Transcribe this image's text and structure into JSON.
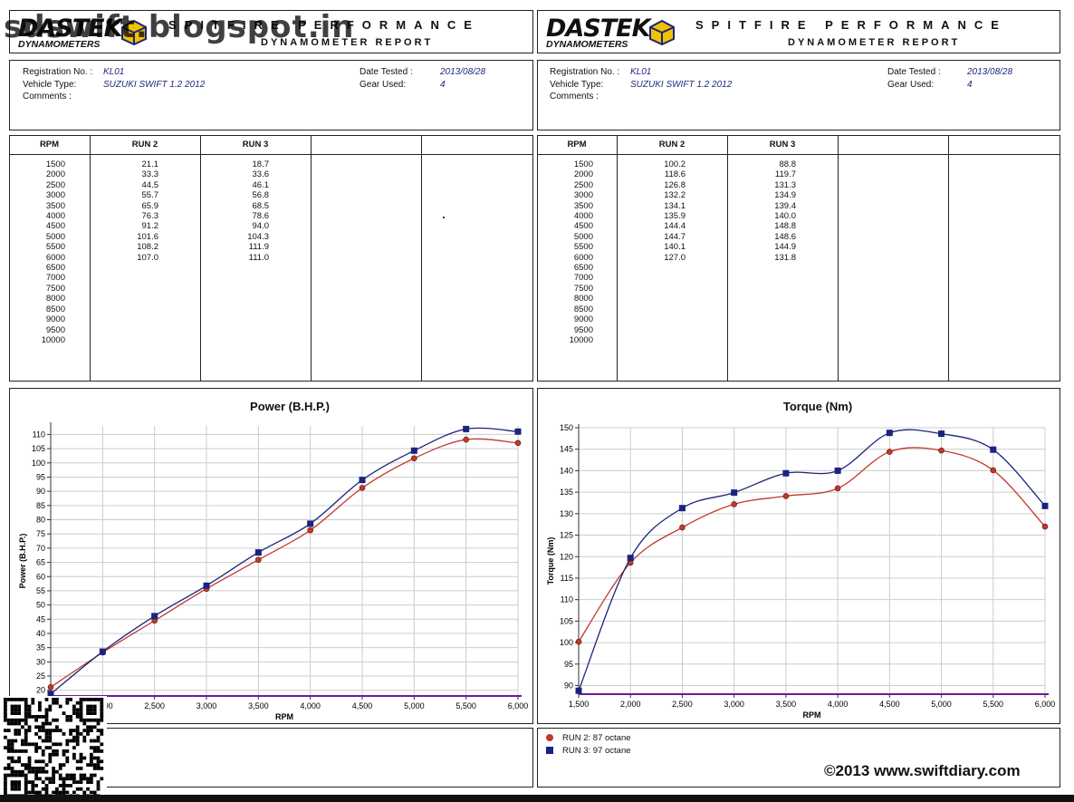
{
  "logo": {
    "brand": "DASTEK",
    "sub": "DYNAMOMETERS"
  },
  "header": {
    "title": "SPITFIRE PERFORMANCE",
    "subtitle": "DYNAMOMETER REPORT"
  },
  "watermark": "sdswift.blogspot.in",
  "info": {
    "registration_label": "Registration No. :",
    "registration": "KL01",
    "vehicle_label": "Vehicle Type:",
    "vehicle": "SUZUKI SWIFT 1.2 2012",
    "comments_label": "Comments :",
    "date_label": "Date Tested :",
    "date": "2013/08/28",
    "gear_label": "Gear Used:",
    "gear": "4"
  },
  "table_headers": {
    "rpm": "RPM",
    "run2": "RUN 2",
    "run3": "RUN 3"
  },
  "rpm_values": [
    "1500",
    "2000",
    "2500",
    "3000",
    "3500",
    "4000",
    "4500",
    "5000",
    "5500",
    "6000",
    "6500",
    "7000",
    "7500",
    "8000",
    "8500",
    "9000",
    "9500",
    "10000"
  ],
  "power_table": {
    "run2": [
      "21.1",
      "33.3",
      "44.5",
      "55.7",
      "65.9",
      "76.3",
      "91.2",
      "101.6",
      "108.2",
      "107.0"
    ],
    "run3": [
      "18.7",
      "33.6",
      "46.1",
      "56.8",
      "68.5",
      "78.6",
      "94.0",
      "104.3",
      "111.9",
      "111.0"
    ]
  },
  "torque_table": {
    "run2": [
      "100.2",
      "118.6",
      "126.8",
      "132.2",
      "134.1",
      "135.9",
      "144.4",
      "144.7",
      "140.1",
      "127.0"
    ],
    "run3": [
      "88.8",
      "119.7",
      "131.3",
      "134.9",
      "139.4",
      "140.0",
      "148.8",
      "148.6",
      "144.9",
      "131.8"
    ]
  },
  "legend": {
    "run2": "RUN 2: 87 octane",
    "run3": "RUN 3: 97 octane"
  },
  "copyright": "©2013 www.swiftdiary.com",
  "colors": {
    "run2": "#c0392b",
    "run3": "#1a237e",
    "grid": "#cccccc"
  },
  "chart_data": [
    {
      "type": "line",
      "title": "Power (B.H.P.)",
      "xlabel": "RPM",
      "ylabel": "Power (B.H.P.)",
      "x": [
        1500,
        2000,
        2500,
        3000,
        3500,
        4000,
        4500,
        5000,
        5500,
        6000
      ],
      "xlim": [
        1500,
        6000
      ],
      "ylim": [
        18,
        113
      ],
      "xticks": [
        2000,
        2500,
        3000,
        3500,
        4000,
        4500,
        5000,
        5500,
        6000
      ],
      "xtick_labels": [
        "2,000",
        "2,500",
        "3,000",
        "3,500",
        "4,000",
        "4,500",
        "5,000",
        "5,500",
        "6,000"
      ],
      "yticks": [
        20,
        25,
        30,
        35,
        40,
        45,
        50,
        55,
        60,
        65,
        70,
        75,
        80,
        85,
        90,
        95,
        100,
        105,
        110
      ],
      "grid": true,
      "series": [
        {
          "name": "RUN 2",
          "values": [
            21.1,
            33.3,
            44.5,
            55.7,
            65.9,
            76.3,
            91.2,
            101.6,
            108.2,
            107.0
          ]
        },
        {
          "name": "RUN 3",
          "values": [
            18.7,
            33.6,
            46.1,
            56.8,
            68.5,
            78.6,
            94.0,
            104.3,
            111.9,
            111.0
          ]
        }
      ]
    },
    {
      "type": "line",
      "title": "Torque (Nm)",
      "xlabel": "RPM",
      "ylabel": "Torque (Nm)",
      "x": [
        1500,
        2000,
        2500,
        3000,
        3500,
        4000,
        4500,
        5000,
        5500,
        6000
      ],
      "xlim": [
        1500,
        6000
      ],
      "ylim": [
        88,
        150
      ],
      "xticks": [
        1500,
        2000,
        2500,
        3000,
        3500,
        4000,
        4500,
        5000,
        5500,
        6000
      ],
      "xtick_labels": [
        "1,500",
        "2,000",
        "2,500",
        "3,000",
        "3,500",
        "4,000",
        "4,500",
        "5,000",
        "5,500",
        "6,000"
      ],
      "yticks": [
        90,
        95,
        100,
        105,
        110,
        115,
        120,
        125,
        130,
        135,
        140,
        145,
        150
      ],
      "grid": true,
      "series": [
        {
          "name": "RUN 2",
          "values": [
            100.2,
            118.6,
            126.8,
            132.2,
            134.1,
            135.9,
            144.4,
            144.7,
            140.1,
            127.0
          ]
        },
        {
          "name": "RUN 3",
          "values": [
            88.8,
            119.7,
            131.3,
            134.9,
            139.4,
            140.0,
            148.8,
            148.6,
            144.9,
            131.8
          ]
        }
      ]
    }
  ]
}
